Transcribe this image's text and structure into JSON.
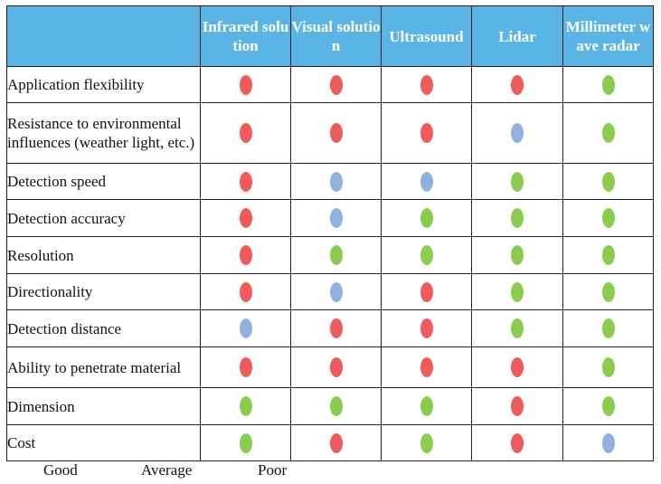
{
  "columns": [
    "Infrared solution",
    "Visual solution",
    "Ultrasound",
    "Lidar",
    "Millimeter wave radar"
  ],
  "ratings": {
    "good": {
      "label": "Good",
      "color": "#8acd4e"
    },
    "average": {
      "label": "Average",
      "color": "#8fb1e0"
    },
    "poor": {
      "label": "Poor",
      "color": "#ef5a5a"
    }
  },
  "rows": [
    {
      "label": "Application flexibility",
      "values": [
        "poor",
        "poor",
        "poor",
        "poor",
        "good"
      ]
    },
    {
      "label": "Resistance to environmental influences (weather light, etc.)",
      "values": [
        "poor",
        "poor",
        "poor",
        "average",
        "good"
      ]
    },
    {
      "label": "Detection speed",
      "values": [
        "poor",
        "average",
        "average",
        "good",
        "good"
      ]
    },
    {
      "label": "Detection accuracy",
      "values": [
        "poor",
        "average",
        "good",
        "good",
        "good"
      ]
    },
    {
      "label": "Resolution",
      "values": [
        "poor",
        "good",
        "good",
        "good",
        "good"
      ]
    },
    {
      "label": "Directionality",
      "values": [
        "poor",
        "average",
        "poor",
        "good",
        "good"
      ]
    },
    {
      "label": "Detection distance",
      "values": [
        "average",
        "poor",
        "poor",
        "good",
        "good"
      ]
    },
    {
      "label": "Ability to penetrate material",
      "values": [
        "poor",
        "poor",
        "poor",
        "poor",
        "good"
      ]
    },
    {
      "label": "Dimension",
      "values": [
        "good",
        "good",
        "good",
        "poor",
        "good"
      ]
    },
    {
      "label": "Cost",
      "values": [
        "good",
        "poor",
        "good",
        "poor",
        "average"
      ]
    }
  ]
}
